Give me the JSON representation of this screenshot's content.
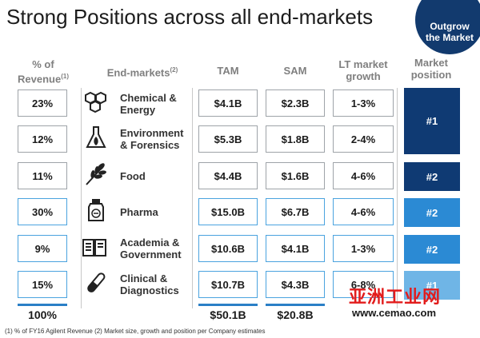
{
  "title": "Strong Positions across all end-markets",
  "badge": {
    "line1": "Outgrow",
    "line2": "the Market"
  },
  "headers": {
    "revenue_line1": "% of",
    "revenue_line2": "Revenue",
    "revenue_note": "(1)",
    "markets": "End-markets",
    "markets_note": "(2)",
    "tam": "TAM",
    "sam": "SAM",
    "growth_line1": "LT market",
    "growth_line2": "growth",
    "position_line1": "Market",
    "position_line2": "position"
  },
  "rows": [
    {
      "revenue": "23%",
      "market_line1": "Chemical &",
      "market_line2": "Energy",
      "tam": "$4.1B",
      "sam": "$2.3B",
      "growth": "1-3%",
      "icon": "molecule-icon"
    },
    {
      "revenue": "12%",
      "market_line1": "Environment",
      "market_line2": "& Forensics",
      "tam": "$5.3B",
      "sam": "$1.8B",
      "growth": "2-4%",
      "icon": "flask-icon"
    },
    {
      "revenue": "11%",
      "market_line1": "Food",
      "market_line2": "",
      "tam": "$4.4B",
      "sam": "$1.6B",
      "growth": "4-6%",
      "icon": "wheat-icon"
    },
    {
      "revenue": "30%",
      "market_line1": "Pharma",
      "market_line2": "",
      "tam": "$15.0B",
      "sam": "$6.7B",
      "growth": "4-6%",
      "icon": "pill-bottle-icon"
    },
    {
      "revenue": "9%",
      "market_line1": "Academia &",
      "market_line2": "Government",
      "tam": "$10.6B",
      "sam": "$4.1B",
      "growth": "1-3%",
      "icon": "book-icon"
    },
    {
      "revenue": "15%",
      "market_line1": "Clinical &",
      "market_line2": "Diagnostics",
      "tam": "$10.7B",
      "sam": "$4.3B",
      "growth": "6-8%",
      "icon": "test-tube-icon"
    }
  ],
  "positions": [
    {
      "label": "#1",
      "color": "#0f3a73"
    },
    {
      "label": "#2",
      "color": "#0f3a73"
    },
    {
      "label": "#2",
      "color": "#2b8ad4"
    },
    {
      "label": "#2",
      "color": "#2b8ad4"
    },
    {
      "label": "#1",
      "color": "#6fb5e6"
    }
  ],
  "totals": {
    "revenue": "100%",
    "tam": "$50.1B",
    "sam": "$20.8B"
  },
  "footnote": "(1) % of FY16 Agilent Revenue  (2) Market size, growth and position per Company estimates",
  "watermark": {
    "text": "亚洲工业网",
    "url": "www.cemao.com"
  }
}
